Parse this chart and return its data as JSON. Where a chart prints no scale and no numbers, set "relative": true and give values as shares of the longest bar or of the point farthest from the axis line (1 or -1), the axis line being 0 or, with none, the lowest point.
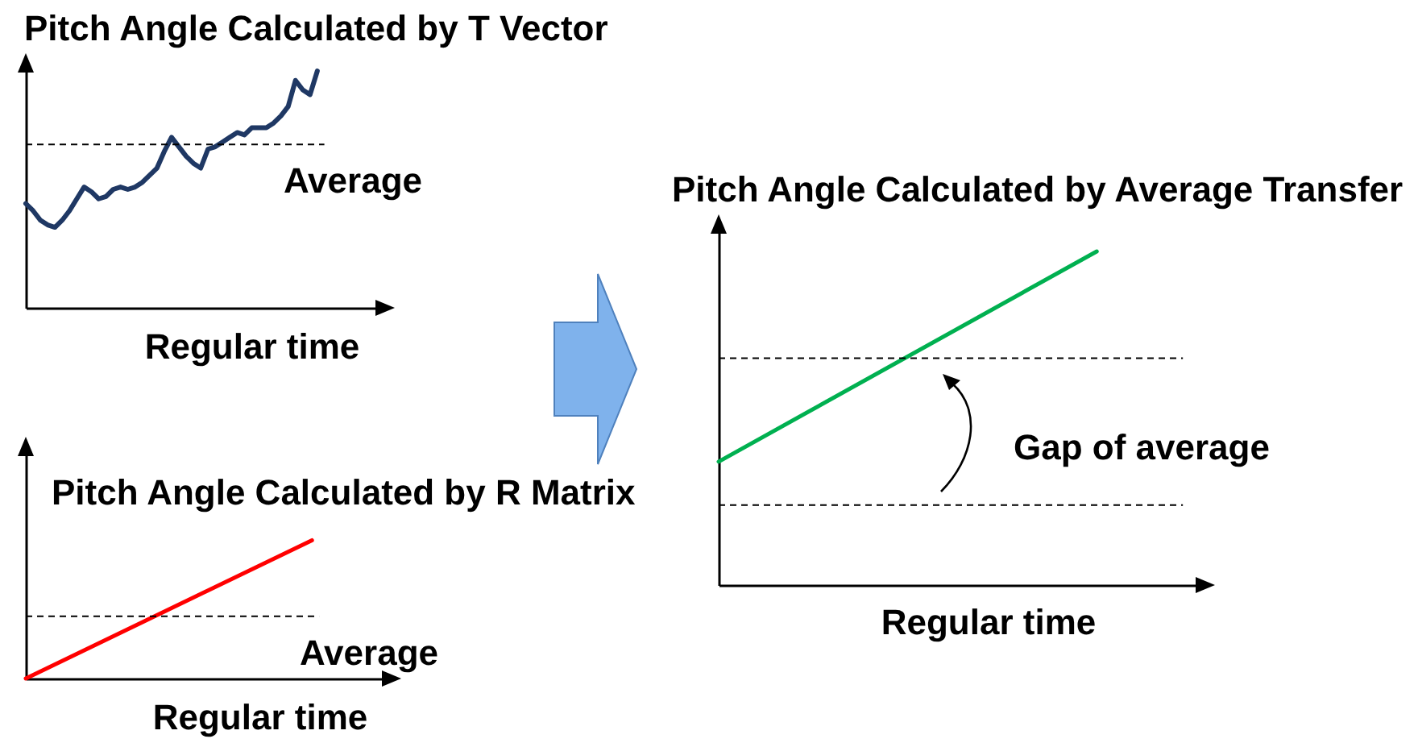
{
  "chart_data": [
    {
      "type": "line",
      "title": "Pitch Angle Calculated by T Vector",
      "xlabel": "Regular time",
      "relative": true,
      "categories": [
        null,
        null,
        null,
        null,
        null,
        null,
        null,
        null,
        null,
        null,
        null,
        null,
        null,
        null,
        null,
        null,
        null,
        null,
        null,
        null,
        null,
        null,
        null,
        null,
        null,
        null,
        null,
        null,
        null,
        null,
        null,
        null,
        null,
        null,
        null,
        null,
        null,
        null,
        null,
        null,
        null
      ],
      "values": [
        0.44,
        0.41,
        0.37,
        0.35,
        0.34,
        0.37,
        0.41,
        0.46,
        0.51,
        0.49,
        0.46,
        0.47,
        0.5,
        0.51,
        0.5,
        0.51,
        0.53,
        0.56,
        0.59,
        0.66,
        0.72,
        0.68,
        0.64,
        0.61,
        0.59,
        0.67,
        0.68,
        0.7,
        0.72,
        0.74,
        0.73,
        0.76,
        0.76,
        0.76,
        0.78,
        0.81,
        0.85,
        0.96,
        0.92,
        0.9,
        1.0
      ],
      "color": "#1f3864",
      "ref_lines": [
        {
          "axis": "y",
          "value": 0.69,
          "label": "Average",
          "line_style": "dashed",
          "color": "#000000"
        }
      ]
    },
    {
      "type": "line",
      "title": "Pitch Angle Calculated by R Matrix",
      "xlabel": "Regular time",
      "relative": true,
      "categories": [
        null,
        null
      ],
      "values": [
        0,
        1
      ],
      "color": "#ff0000",
      "ref_lines": [
        {
          "axis": "y",
          "value": 0.45,
          "label": "Average",
          "line_style": "dashed",
          "color": "#000000"
        }
      ]
    },
    {
      "type": "line",
      "title": "Pitch Angle Calculated by Average Transfer",
      "xlabel": "Regular time",
      "relative": true,
      "categories": [
        null,
        null
      ],
      "values": [
        0.37,
        1
      ],
      "color": "#00b050",
      "ref_lines": [
        {
          "axis": "y",
          "value": 0.68,
          "line_style": "dashed",
          "color": "#000000"
        },
        {
          "axis": "y",
          "value": 0.24,
          "line_style": "dashed",
          "color": "#000000"
        }
      ],
      "annotations": [
        "Gap of average"
      ]
    }
  ]
}
